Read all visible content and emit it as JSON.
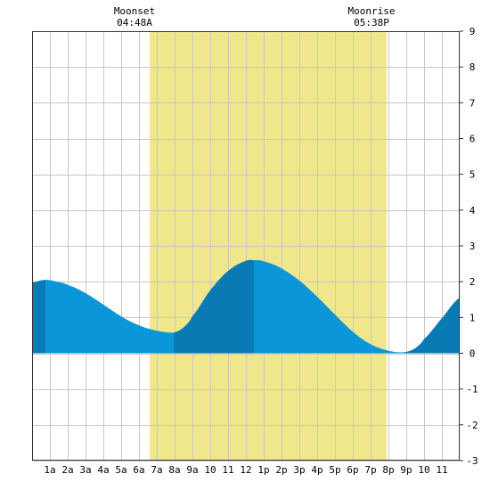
{
  "chart_data": {
    "type": "area",
    "title": "",
    "xlabel": "",
    "ylabel": "",
    "x_range_hours": [
      0,
      24
    ],
    "ylim": [
      -3,
      9
    ],
    "y_ticks": [
      -3,
      -2,
      -1,
      0,
      1,
      2,
      3,
      4,
      5,
      6,
      7,
      8,
      9
    ],
    "x_tick_labels": [
      "1a",
      "2a",
      "3a",
      "4a",
      "5a",
      "6a",
      "7a",
      "8a",
      "9a",
      "10",
      "11",
      "12",
      "1p",
      "2p",
      "3p",
      "4p",
      "5p",
      "6p",
      "7p",
      "8p",
      "9p",
      "10",
      "11"
    ],
    "grid": true,
    "daylight": {
      "start_hour": 6.6,
      "end_hour": 19.9,
      "color": "#f0e68c"
    },
    "moon_events": [
      {
        "name": "Moonset",
        "time": "04:48A",
        "hour": 6.6
      },
      {
        "name": "Moonrise",
        "time": "05:38P",
        "hour": 19.9
      }
    ],
    "tide_extremes": [
      {
        "type": "high",
        "hour": 0.75,
        "value": 2.05
      },
      {
        "type": "low",
        "hour": 7.95,
        "value": 0.58
      },
      {
        "type": "high",
        "hour": 12.45,
        "value": 2.6
      },
      {
        "type": "low",
        "hour": 20.9,
        "value": 0.03
      }
    ],
    "series": [
      {
        "values": [
          [
            0.0,
            1.98
          ],
          [
            0.75,
            2.05
          ],
          [
            1.5,
            1.99
          ],
          [
            2.0,
            1.91
          ],
          [
            3.0,
            1.68
          ],
          [
            4.0,
            1.36
          ],
          [
            5.0,
            1.03
          ],
          [
            6.0,
            0.78
          ],
          [
            7.0,
            0.63
          ],
          [
            7.95,
            0.58
          ],
          [
            8.5,
            0.72
          ],
          [
            9.0,
            1.04
          ],
          [
            10.0,
            1.76
          ],
          [
            11.0,
            2.3
          ],
          [
            12.0,
            2.58
          ],
          [
            12.45,
            2.6
          ],
          [
            13.0,
            2.57
          ],
          [
            14.0,
            2.37
          ],
          [
            15.0,
            2.03
          ],
          [
            16.0,
            1.58
          ],
          [
            17.0,
            1.08
          ],
          [
            18.0,
            0.6
          ],
          [
            19.0,
            0.25
          ],
          [
            20.0,
            0.07
          ],
          [
            20.9,
            0.03
          ],
          [
            21.5,
            0.14
          ],
          [
            22.0,
            0.4
          ],
          [
            23.0,
            0.98
          ],
          [
            24.0,
            1.55
          ]
        ],
        "color_light": "#0a96d8",
        "color_dark": "#0a7ab4"
      }
    ]
  }
}
